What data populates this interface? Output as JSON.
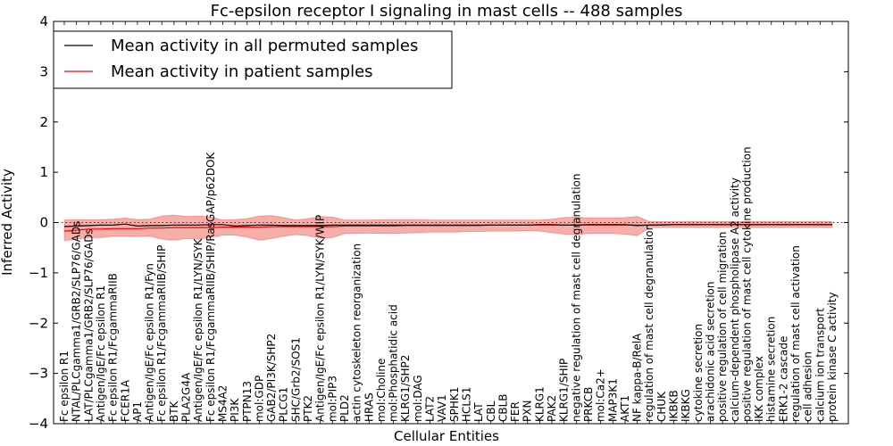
{
  "chart_data": {
    "type": "line",
    "title": "Fc-epsilon receptor I signaling in mast cells -- 488 samples",
    "xlabel": "Cellular Entities",
    "ylabel": "Inferred Activity",
    "ylim": [
      -4,
      4
    ],
    "yticks": [
      "−4",
      "−3",
      "−2",
      "−1",
      "0",
      "1",
      "2",
      "3",
      "4"
    ],
    "legend": {
      "position": "top-left",
      "entries": [
        {
          "label": "Mean activity in all permuted samples",
          "color": "#000000"
        },
        {
          "label": "Mean activity in patient samples",
          "color": "#ff0000"
        }
      ]
    },
    "colors": {
      "permuted": "#000000",
      "patient": "#ff0000",
      "band": "#f4a09a",
      "band_edge": "#ff0000"
    },
    "categories": [
      "Fc epsilon R1",
      "NTAL/PLCgamma1/GRB2/SLP76/GADs",
      "LAT/PLCgamma1/GRB2/SLP76/GADs",
      "Antigen/IgE/Fc epsilon R1",
      "Fc epsilon R1/FcgammaRIIB",
      "FCER1A",
      "AP1",
      "Antigen/IgE/Fc epsilon R1/Fyn",
      "Fc epsilon R1/FcgammaRIIB/SHIP",
      "BTK",
      "PLA2G4A",
      "Antigen/IgE/Fc epsilon R1/LYN/SYK",
      "Fc epsilon R1/FcgammaRIIB/SHIP/RasGAP/p62DOK",
      "MS4A2",
      "PI3K",
      "PTPN13",
      "mol:GDP",
      "GAB2/PI3K/SHP2",
      "PLCG1",
      "SHC/Grb2/SOS1",
      "PTK2",
      "Antigen/IgE/Fc epsilon R1/LYN/SYK/WIP",
      "mol:PIP3",
      "PLD2",
      "actin cytoskeleton reorganization",
      "HRAS",
      "mol:Choline",
      "mol:Phosphatidic acid",
      "KLRG1/SHP2",
      "mol:DAG",
      "LAT2",
      "VAV1",
      "SPHK1",
      "HCLS1",
      "LAT",
      "CBL",
      "CBLB",
      "FER",
      "PXN",
      "KLRG1",
      "PAK2",
      "KLRG1/SHIP",
      "negative regulation of mast cell degranulation",
      "PRKCB",
      "mol:Ca2+",
      "MAP3K1",
      "AKT1",
      "NF kappa-B/RelA",
      "regulation of mast cell degranulation",
      "CHUK",
      "IKBKB",
      "IKBKG",
      "cytokine secretion",
      "arachidonic acid secretion",
      "positive regulation of cell migration",
      "calcium-dependent phospholipase A2 activity",
      "positive regulation of mast cell cytokine production",
      "IKK complex",
      "histamine secretion",
      "ERK1-2 cascade",
      "regulation of mast cell activation",
      "cell adhesion",
      "calcium ion transport",
      "protein kinase C activity"
    ],
    "series": [
      {
        "name": "Mean activity in all permuted samples",
        "color": "#000000",
        "values": [
          -0.08,
          -0.07,
          -0.06,
          -0.05,
          -0.05,
          -0.03,
          -0.07,
          -0.06,
          -0.06,
          -0.05,
          -0.05,
          -0.05,
          -0.04,
          -0.04,
          -0.07,
          -0.06,
          -0.05,
          -0.05,
          -0.06,
          -0.06,
          -0.06,
          -0.06,
          -0.05,
          -0.05,
          -0.05,
          -0.05,
          -0.05,
          -0.05,
          -0.05,
          -0.05,
          -0.05,
          -0.05,
          -0.05,
          -0.05,
          -0.05,
          -0.05,
          -0.05,
          -0.05,
          -0.05,
          -0.04,
          -0.04,
          -0.05,
          -0.05,
          -0.04,
          -0.04,
          -0.04,
          -0.04,
          -0.06,
          -0.05,
          -0.05,
          -0.04,
          -0.04,
          -0.04,
          -0.04,
          -0.04,
          -0.04,
          -0.04,
          -0.04,
          -0.04,
          -0.04,
          -0.04,
          -0.04,
          -0.04,
          -0.04
        ]
      },
      {
        "name": "Mean activity in patient samples",
        "color": "#ff0000",
        "values": [
          -0.17,
          -0.15,
          -0.13,
          -0.13,
          -0.12,
          -0.12,
          -0.12,
          -0.11,
          -0.11,
          -0.1,
          -0.1,
          -0.1,
          -0.1,
          -0.09,
          -0.09,
          -0.09,
          -0.09,
          -0.08,
          -0.08,
          -0.08,
          -0.08,
          -0.08,
          -0.08,
          -0.07,
          -0.07,
          -0.07,
          -0.07,
          -0.07,
          -0.06,
          -0.06,
          -0.06,
          -0.06,
          -0.06,
          -0.06,
          -0.06,
          -0.05,
          -0.05,
          -0.05,
          -0.05,
          -0.05,
          -0.05,
          -0.05,
          -0.05,
          -0.05,
          -0.05,
          -0.05,
          -0.05,
          -0.05,
          -0.05,
          -0.04,
          -0.04,
          -0.04,
          -0.04,
          -0.04,
          -0.04,
          -0.04,
          -0.04,
          -0.04,
          -0.04,
          -0.04,
          -0.04,
          -0.04,
          -0.04,
          -0.04
        ]
      }
    ],
    "band": {
      "name": "patient variability",
      "upper": [
        0.05,
        0.06,
        0.06,
        0.06,
        0.07,
        0.09,
        0.06,
        0.07,
        0.13,
        0.15,
        0.12,
        0.13,
        0.11,
        0.05,
        0.06,
        0.08,
        0.13,
        0.14,
        0.1,
        0.05,
        0.08,
        0.12,
        0.11,
        0.05,
        0.05,
        0.05,
        0.06,
        0.06,
        0.06,
        0.06,
        0.05,
        0.05,
        0.05,
        0.05,
        0.05,
        0.05,
        0.05,
        0.05,
        0.05,
        0.05,
        0.07,
        0.1,
        0.11,
        0.09,
        0.09,
        0.09,
        0.1,
        0.12,
        0.02,
        0.02,
        0.02,
        0.02,
        0.02,
        0.02,
        0.02,
        0.02,
        0.02,
        0.02,
        0.02,
        0.02,
        0.02,
        0.02,
        0.02,
        0.02
      ],
      "lower": [
        -0.36,
        -0.33,
        -0.3,
        -0.3,
        -0.27,
        -0.27,
        -0.28,
        -0.27,
        -0.33,
        -0.35,
        -0.32,
        -0.33,
        -0.3,
        -0.25,
        -0.25,
        -0.29,
        -0.35,
        -0.32,
        -0.27,
        -0.24,
        -0.26,
        -0.31,
        -0.3,
        -0.22,
        -0.22,
        -0.21,
        -0.22,
        -0.22,
        -0.21,
        -0.2,
        -0.19,
        -0.19,
        -0.19,
        -0.18,
        -0.18,
        -0.17,
        -0.17,
        -0.17,
        -0.16,
        -0.17,
        -0.2,
        -0.23,
        -0.24,
        -0.22,
        -0.22,
        -0.22,
        -0.23,
        -0.26,
        -0.1,
        -0.1,
        -0.1,
        -0.1,
        -0.1,
        -0.1,
        -0.1,
        -0.1,
        -0.1,
        -0.1,
        -0.1,
        -0.1,
        -0.1,
        -0.1,
        -0.1,
        -0.1
      ]
    }
  }
}
